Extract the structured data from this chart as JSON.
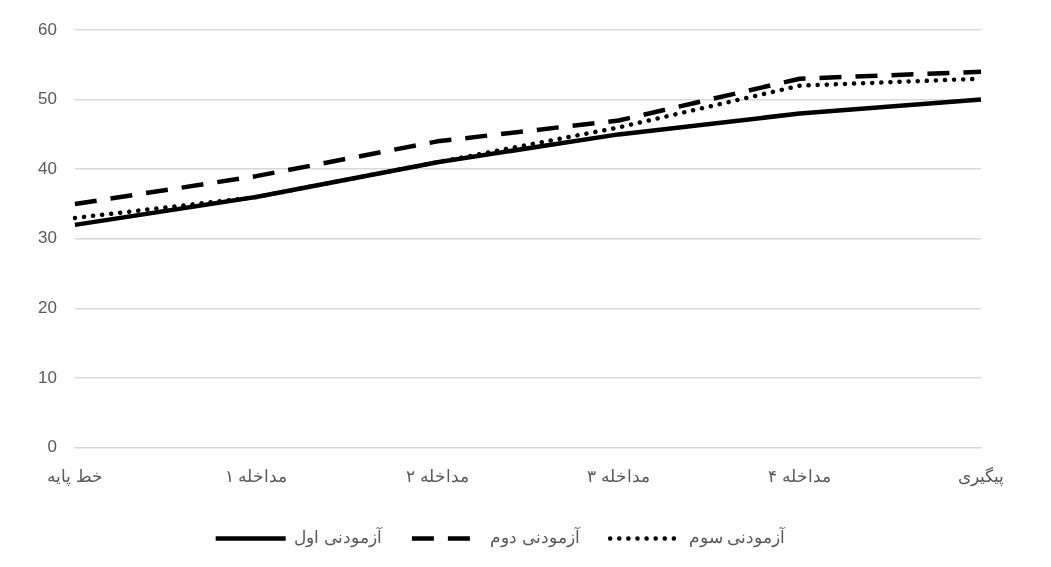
{
  "chart_data": {
    "type": "line",
    "categories": [
      "خط پایه",
      "مداخله ۱",
      "مداخله ۲",
      "مداخله ۳",
      "مداخله ۴",
      "پیگیری"
    ],
    "series": [
      {
        "name": "آزمودنی اول",
        "color": "#000000",
        "line_style": "solid",
        "values": [
          32,
          36,
          41,
          45,
          48,
          50
        ]
      },
      {
        "name": "آزمودنی دوم",
        "color": "#000000",
        "line_style": "dashed",
        "values": [
          35,
          39,
          44,
          47,
          53,
          54
        ]
      },
      {
        "name": "آزمودنی سوم",
        "color": "#000000",
        "line_style": "dotted",
        "values": [
          33,
          36,
          41,
          46,
          52,
          53
        ]
      }
    ],
    "ylim": [
      0,
      60
    ],
    "yticks": [
      0,
      10,
      20,
      30,
      40,
      50,
      60
    ],
    "grid": "y",
    "legend": "bottom",
    "marker": "none"
  }
}
